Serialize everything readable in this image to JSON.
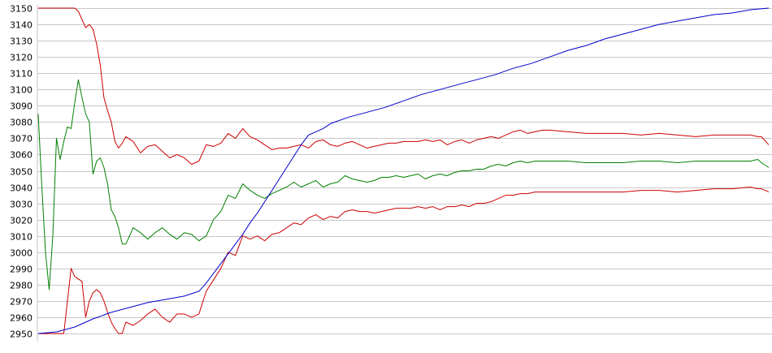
{
  "chart_data": {
    "type": "line",
    "title": "",
    "xlabel": "",
    "ylabel": "",
    "ylim": [
      2950,
      3150
    ],
    "yticks": [
      2950,
      2960,
      2970,
      2980,
      2990,
      3000,
      3010,
      3020,
      3030,
      3040,
      3050,
      3060,
      3070,
      3080,
      3090,
      3100,
      3110,
      3120,
      3130,
      3140,
      3150
    ],
    "xlim": [
      0,
      200
    ],
    "grid": true,
    "legend": "none",
    "colors": {
      "upper": "#cc0000",
      "middle": "#008000",
      "lower": "#cc0000",
      "trend": "#0000cc",
      "grid": "#c8c8c8"
    },
    "series": [
      {
        "color": "#cc0000",
        "x": [
          0,
          10,
          11,
          12,
          13,
          14,
          15,
          16,
          17,
          18,
          19,
          20,
          21,
          22,
          23,
          24,
          26,
          28,
          30,
          32,
          34,
          36,
          38,
          40,
          42,
          44,
          46,
          48,
          50,
          52,
          54,
          56,
          58,
          60,
          62,
          64,
          66,
          68,
          70,
          72,
          74,
          76,
          78,
          80,
          82,
          84,
          86,
          88,
          90,
          92,
          94,
          96,
          98,
          100,
          102,
          104,
          106,
          108,
          110,
          112,
          114,
          116,
          118,
          120,
          122,
          124,
          126,
          128,
          130,
          132,
          134,
          136,
          138,
          140,
          145,
          150,
          155,
          160,
          165,
          170,
          175,
          180,
          185,
          190,
          195,
          197,
          198,
          200
        ],
        "y": [
          3150,
          3150,
          3148,
          3143,
          3138,
          3140,
          3137,
          3128,
          3115,
          3095,
          3087,
          3080,
          3068,
          3064,
          3067,
          3071,
          3068,
          3061,
          3065,
          3066,
          3062,
          3058,
          3060,
          3058,
          3054,
          3056,
          3066,
          3065,
          3067,
          3073,
          3070,
          3076,
          3071,
          3069,
          3066,
          3063,
          3064,
          3064,
          3065,
          3066,
          3064,
          3068,
          3069,
          3066,
          3065,
          3067,
          3068,
          3066,
          3064,
          3065,
          3066,
          3067,
          3067,
          3068,
          3068,
          3068,
          3069,
          3068,
          3069,
          3066,
          3068,
          3069,
          3067,
          3069,
          3070,
          3071,
          3070,
          3072,
          3074,
          3075,
          3073,
          3074,
          3075,
          3075,
          3074,
          3073,
          3073,
          3073,
          3072,
          3073,
          3072,
          3071,
          3072,
          3072,
          3072,
          3071,
          3071,
          3066
        ]
      },
      {
        "color": "#008000",
        "x": [
          0,
          1,
          2,
          3,
          4,
          5,
          6,
          7,
          8,
          9,
          10,
          11,
          12,
          13,
          14,
          15,
          16,
          17,
          18,
          19,
          20,
          21,
          22,
          23,
          24,
          26,
          28,
          30,
          32,
          34,
          36,
          38,
          40,
          42,
          44,
          46,
          48,
          50,
          52,
          54,
          56,
          58,
          60,
          62,
          64,
          66,
          68,
          70,
          72,
          74,
          76,
          78,
          80,
          82,
          84,
          86,
          88,
          90,
          92,
          94,
          96,
          98,
          100,
          102,
          104,
          106,
          108,
          110,
          112,
          114,
          116,
          118,
          120,
          122,
          124,
          126,
          128,
          130,
          132,
          134,
          136,
          138,
          140,
          145,
          150,
          155,
          160,
          165,
          170,
          175,
          180,
          185,
          190,
          195,
          197,
          198,
          200
        ],
        "y": [
          3085,
          3040,
          3000,
          2977,
          3010,
          3070,
          3057,
          3068,
          3077,
          3076,
          3092,
          3106,
          3095,
          3085,
          3080,
          3048,
          3056,
          3058,
          3052,
          3042,
          3026,
          3022,
          3015,
          3005,
          3005,
          3015,
          3012,
          3008,
          3012,
          3015,
          3011,
          3008,
          3012,
          3011,
          3007,
          3010,
          3020,
          3025,
          3035,
          3033,
          3042,
          3038,
          3035,
          3033,
          3036,
          3038,
          3040,
          3043,
          3040,
          3042,
          3044,
          3040,
          3042,
          3043,
          3047,
          3045,
          3044,
          3043,
          3044,
          3046,
          3046,
          3047,
          3046,
          3047,
          3048,
          3045,
          3047,
          3048,
          3047,
          3049,
          3050,
          3050,
          3051,
          3051,
          3053,
          3054,
          3053,
          3055,
          3056,
          3055,
          3056,
          3056,
          3056,
          3056,
          3055,
          3055,
          3055,
          3056,
          3056,
          3055,
          3056,
          3056,
          3056,
          3056,
          3057,
          3055,
          3052
        ]
      },
      {
        "color": "#cc0000",
        "x": [
          0,
          3,
          7,
          8,
          9,
          10,
          12,
          13,
          14,
          15,
          16,
          17,
          18,
          19,
          20,
          21,
          22,
          23,
          24,
          26,
          28,
          30,
          32,
          34,
          36,
          38,
          40,
          42,
          44,
          46,
          48,
          50,
          52,
          54,
          56,
          58,
          60,
          62,
          64,
          66,
          68,
          70,
          72,
          74,
          76,
          78,
          80,
          82,
          84,
          86,
          88,
          90,
          92,
          94,
          96,
          98,
          100,
          102,
          104,
          106,
          108,
          110,
          112,
          114,
          116,
          118,
          120,
          122,
          124,
          126,
          128,
          130,
          132,
          134,
          136,
          138,
          140,
          145,
          150,
          155,
          160,
          165,
          170,
          175,
          180,
          185,
          190,
          195,
          197,
          198,
          200
        ],
        "y": [
          2950,
          2950,
          2950,
          2970,
          2990,
          2985,
          2982,
          2960,
          2970,
          2975,
          2977,
          2975,
          2970,
          2963,
          2957,
          2953,
          2950,
          2950,
          2957,
          2955,
          2958,
          2962,
          2965,
          2960,
          2957,
          2962,
          2962,
          2960,
          2962,
          2976,
          2983,
          2990,
          3000,
          2998,
          3010,
          3008,
          3010,
          3007,
          3011,
          3012,
          3015,
          3018,
          3017,
          3021,
          3023,
          3020,
          3022,
          3021,
          3025,
          3026,
          3025,
          3025,
          3024,
          3025,
          3026,
          3027,
          3027,
          3027,
          3028,
          3027,
          3028,
          3026,
          3028,
          3028,
          3029,
          3028,
          3030,
          3030,
          3031,
          3033,
          3035,
          3035,
          3036,
          3036,
          3037,
          3037,
          3037,
          3037,
          3037,
          3037,
          3037,
          3038,
          3038,
          3037,
          3038,
          3039,
          3039,
          3040,
          3039,
          3039,
          3037
        ]
      },
      {
        "color": "#0000cc",
        "x": [
          0,
          5,
          10,
          15,
          20,
          25,
          30,
          35,
          40,
          44,
          46,
          48,
          50,
          52,
          54,
          56,
          58,
          60,
          62,
          64,
          66,
          68,
          70,
          72,
          74,
          76,
          78,
          80,
          85,
          90,
          95,
          100,
          105,
          110,
          115,
          120,
          125,
          130,
          135,
          140,
          145,
          150,
          155,
          160,
          165,
          170,
          175,
          180,
          185,
          190,
          195,
          200
        ],
        "y": [
          2950,
          2951,
          2954,
          2959,
          2963,
          2966,
          2969,
          2971,
          2973,
          2976,
          2981,
          2987,
          2993,
          2999,
          3005,
          3011,
          3018,
          3024,
          3031,
          3038,
          3045,
          3052,
          3059,
          3066,
          3072,
          3074,
          3076,
          3079,
          3083,
          3086,
          3089,
          3093,
          3097,
          3100,
          3103,
          3106,
          3109,
          3113,
          3116,
          3120,
          3124,
          3127,
          3131,
          3134,
          3137,
          3140,
          3142,
          3144,
          3146,
          3147,
          3149,
          3150
        ]
      }
    ]
  }
}
